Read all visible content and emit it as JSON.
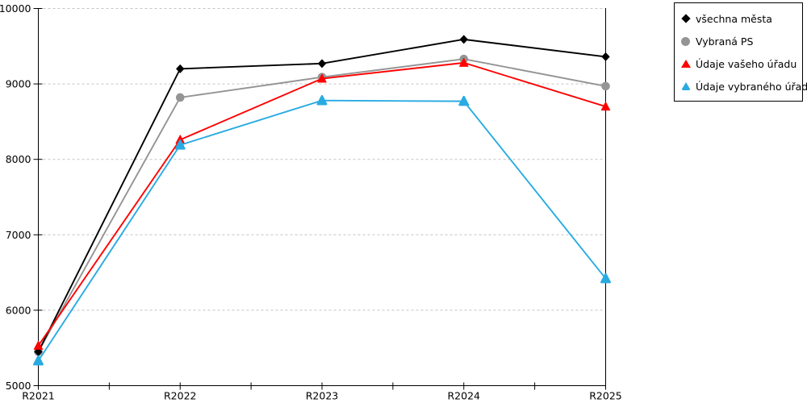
{
  "chart_data": {
    "type": "line",
    "categories": [
      "R2021",
      "R2022",
      "R2023",
      "R2024",
      "R2025"
    ],
    "series": [
      {
        "name": "všechna města",
        "color": "#000000",
        "marker": "diamond",
        "values": [
          5450,
          9200,
          9270,
          9590,
          9360
        ]
      },
      {
        "name": "Vybraná PS",
        "color": "#949494",
        "marker": "circle",
        "values": [
          5450,
          8820,
          9090,
          9330,
          8970
        ]
      },
      {
        "name": "Údaje vašeho úřadu",
        "color": "#ff0000",
        "marker": "triangle",
        "values": [
          5530,
          8260,
          9070,
          9280,
          8700
        ]
      },
      {
        "name": "Údaje vybraného úřadu",
        "color": "#29abe2",
        "marker": "triangle-rounded",
        "values": [
          5330,
          8190,
          8780,
          8770,
          6420
        ]
      }
    ],
    "title": "",
    "xlabel": "",
    "ylabel": "",
    "ylim": [
      5000,
      10000
    ],
    "ytick_interval": 1000,
    "ytick_labels": [
      "5000",
      "6000",
      "7000",
      "8000",
      "9000",
      "10000"
    ],
    "grid": {
      "horizontal": true,
      "style": "dashed",
      "color": "#c4c4c4"
    },
    "axis_color": "#000000",
    "legend_position": "top-right",
    "legend_border_color": "#000000",
    "draw_order": [
      1,
      0,
      2,
      3
    ]
  }
}
